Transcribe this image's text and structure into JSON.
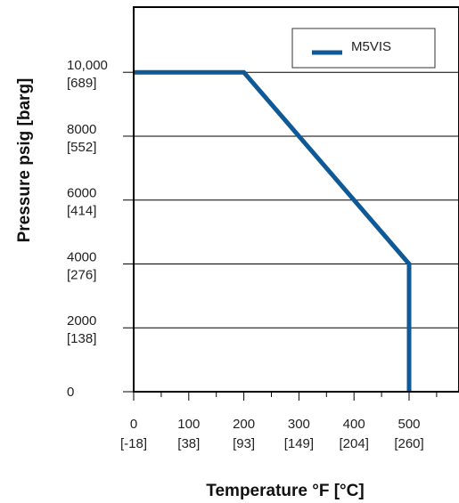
{
  "chart_data": {
    "type": "line",
    "xlabel": "Temperature °F [°C]",
    "ylabel": "Pressure psig [barg]",
    "xlim": [
      0,
      600
    ],
    "ylim": [
      0,
      12000
    ],
    "x_ticks": [
      {
        "value": 0,
        "label": "0",
        "sublabel": "[-18]"
      },
      {
        "value": 100,
        "label": "100",
        "sublabel": "[38]"
      },
      {
        "value": 200,
        "label": "200",
        "sublabel": "[93]"
      },
      {
        "value": 300,
        "label": "300",
        "sublabel": "[149]"
      },
      {
        "value": 400,
        "label": "400",
        "sublabel": "[204]"
      },
      {
        "value": 500,
        "label": "500",
        "sublabel": "[260]"
      }
    ],
    "y_ticks": [
      {
        "value": 0,
        "label": "0",
        "sublabel": ""
      },
      {
        "value": 2000,
        "label": "2000",
        "sublabel": "[138]"
      },
      {
        "value": 4000,
        "label": "4000",
        "sublabel": "[276]"
      },
      {
        "value": 6000,
        "label": "6000",
        "sublabel": "[414]"
      },
      {
        "value": 8000,
        "label": "8000",
        "sublabel": "[552]"
      },
      {
        "value": 10000,
        "label": "10,000",
        "sublabel": "[689]"
      }
    ],
    "grid": "horizontal",
    "legend_position": "top-right",
    "series": [
      {
        "name": "M5VIS",
        "color": "#0f5a96",
        "x": [
          0,
          200,
          500,
          500
        ],
        "y": [
          10000,
          10000,
          4000,
          0
        ]
      }
    ]
  }
}
